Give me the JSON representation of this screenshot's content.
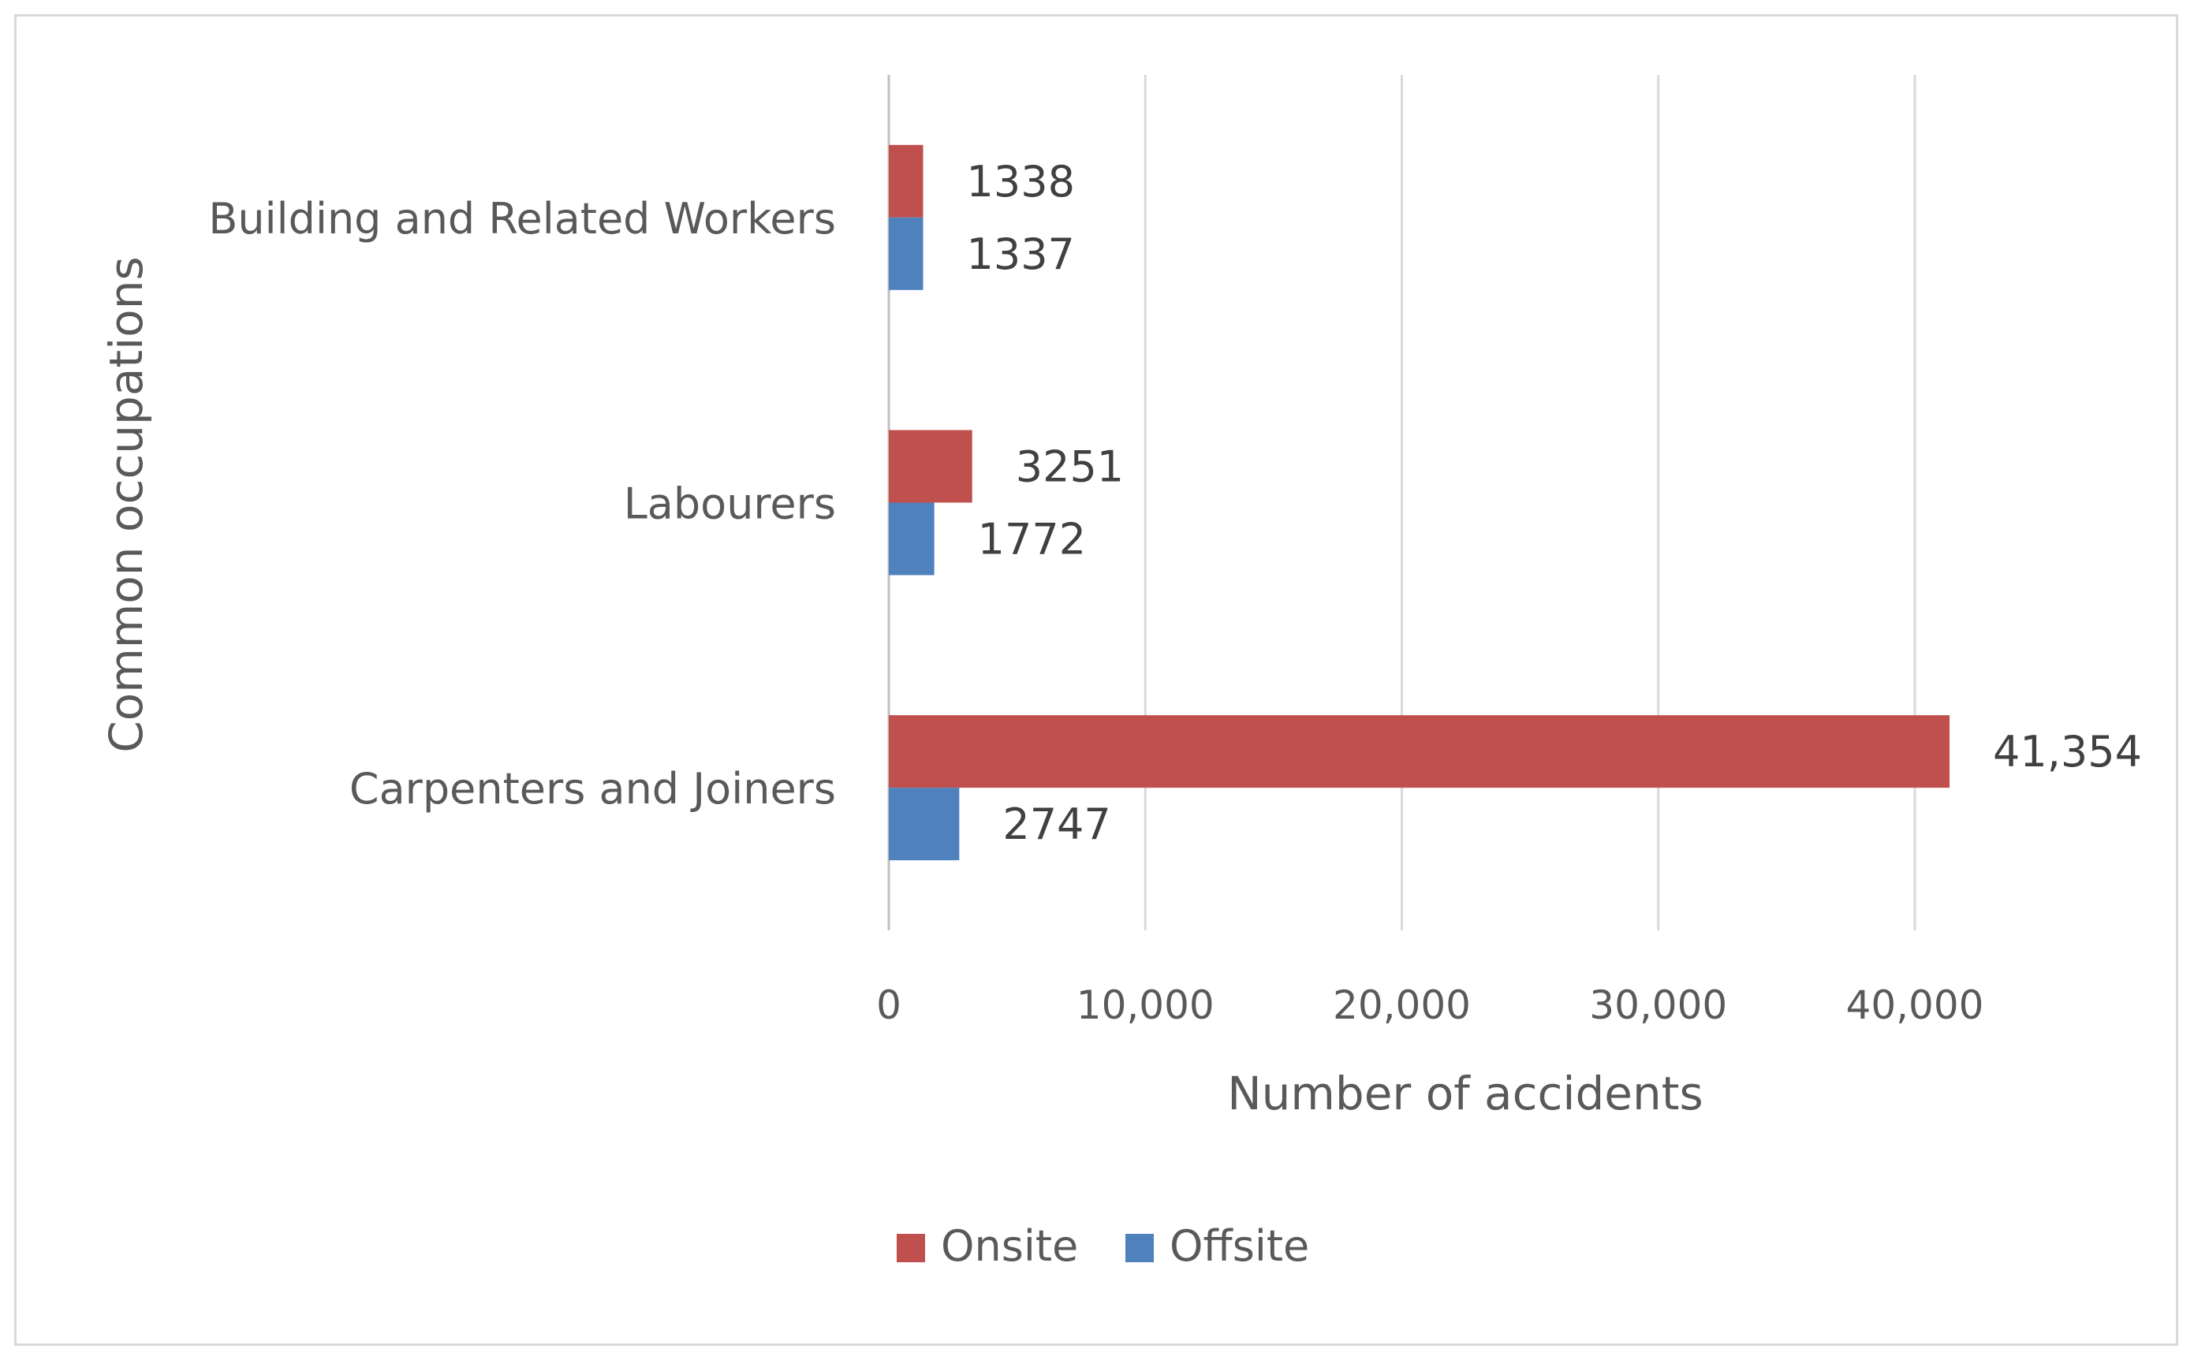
{
  "chart_data": {
    "type": "bar",
    "orientation": "horizontal",
    "categories": [
      "Building and Related Workers",
      "Labourers",
      "Carpenters and Joiners"
    ],
    "series": [
      {
        "name": "Onsite",
        "color": "#c0504d",
        "values": [
          1338,
          3251,
          41354
        ],
        "labels": [
          "1338",
          "3251",
          "41,354"
        ]
      },
      {
        "name": "Offsite",
        "color": "#4f81bd",
        "values": [
          1337,
          1772,
          2747
        ],
        "labels": [
          "1337",
          "1772",
          "2747"
        ]
      }
    ],
    "xlim": [
      0,
      50000
    ],
    "xticks": [
      0,
      10000,
      20000,
      30000,
      40000
    ],
    "xtick_labels": [
      "0",
      "10,000",
      "20,000",
      "30,000",
      "40,000"
    ],
    "title": "",
    "xlabel": "Number of accidents",
    "ylabel": "Common occupations",
    "grid": "vertical",
    "legend": "bottom-center"
  }
}
